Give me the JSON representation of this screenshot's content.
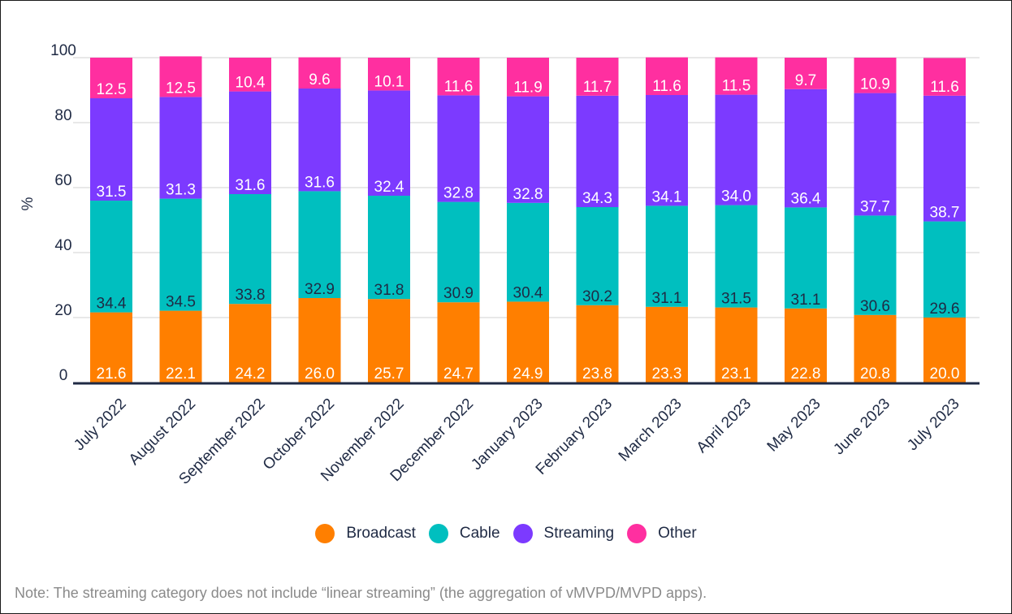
{
  "chart_data": {
    "type": "bar",
    "stacked": true,
    "ylabel": "%",
    "xlabel": "",
    "ylim": [
      0,
      100
    ],
    "yticks": [
      0,
      20,
      40,
      60,
      80,
      100
    ],
    "grid": true,
    "legend_position": "bottom",
    "categories": [
      "July 2022",
      "August 2022",
      "September 2022",
      "October 2022",
      "November 2022",
      "December 2022",
      "January 2023",
      "February 2023",
      "March 2023",
      "April 2023",
      "May 2023",
      "June 2023",
      "July 2023"
    ],
    "series": [
      {
        "name": "Broadcast",
        "color": "#ff7f00",
        "label_color": "#ffffff",
        "values": [
          21.6,
          22.1,
          24.2,
          26.0,
          25.7,
          24.7,
          24.9,
          23.8,
          23.3,
          23.1,
          22.8,
          20.8,
          20.0
        ]
      },
      {
        "name": "Cable",
        "color": "#00bfbf",
        "label_color": "#1f2a44",
        "values": [
          34.4,
          34.5,
          33.8,
          32.9,
          31.8,
          30.9,
          30.4,
          30.2,
          31.1,
          31.5,
          31.1,
          30.6,
          29.6
        ]
      },
      {
        "name": "Streaming",
        "color": "#7c3aff",
        "label_color": "#ffffff",
        "values": [
          31.5,
          31.3,
          31.6,
          31.6,
          32.4,
          32.8,
          32.8,
          34.3,
          34.1,
          34.0,
          36.4,
          37.7,
          38.7
        ]
      },
      {
        "name": "Other",
        "color": "#ff2fa0",
        "label_color": "#ffffff",
        "values": [
          12.5,
          12.5,
          10.4,
          9.6,
          10.1,
          11.6,
          11.9,
          11.7,
          11.6,
          11.5,
          9.7,
          10.9,
          11.6
        ]
      }
    ]
  },
  "note": "Note: The streaming category does not include “linear streaming” (the aggregation of vMVPD/MVPD apps).",
  "colors": {
    "axis": "#1f2a44",
    "grid": "#d0d0d0"
  }
}
